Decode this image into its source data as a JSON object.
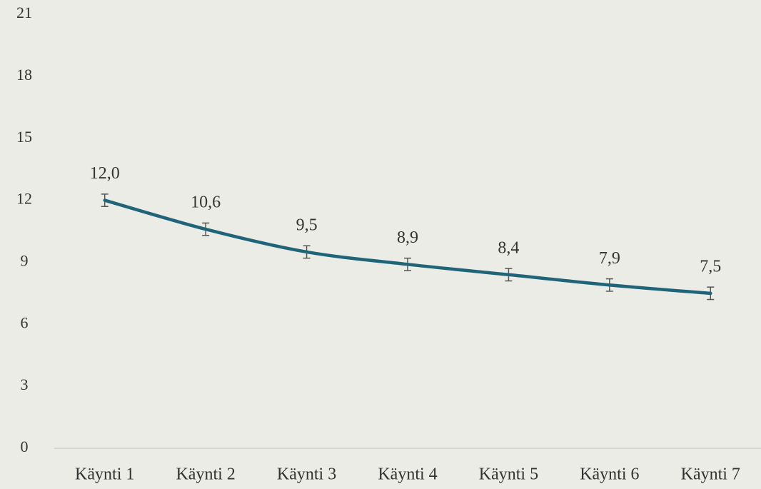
{
  "chart_data": {
    "type": "line",
    "categories": [
      "Käynti 1",
      "Käynti 2",
      "Käynti 3",
      "Käynti 4",
      "Käynti 5",
      "Käynti 6",
      "Käynti 7"
    ],
    "series": [
      {
        "color": "#1f6478",
        "values": [
          12.0,
          10.6,
          9.5,
          8.9,
          8.4,
          7.9,
          7.5
        ],
        "value_labels": [
          "12,0",
          "10,6",
          "9,5",
          "8,9",
          "8,4",
          "7,9",
          "7,5"
        ],
        "errors": [
          0.3,
          0.3,
          0.3,
          0.3,
          0.3,
          0.3,
          0.3
        ]
      }
    ],
    "ylim": [
      0,
      21
    ],
    "yticks": [
      0,
      3,
      6,
      9,
      12,
      15,
      18,
      21
    ]
  }
}
